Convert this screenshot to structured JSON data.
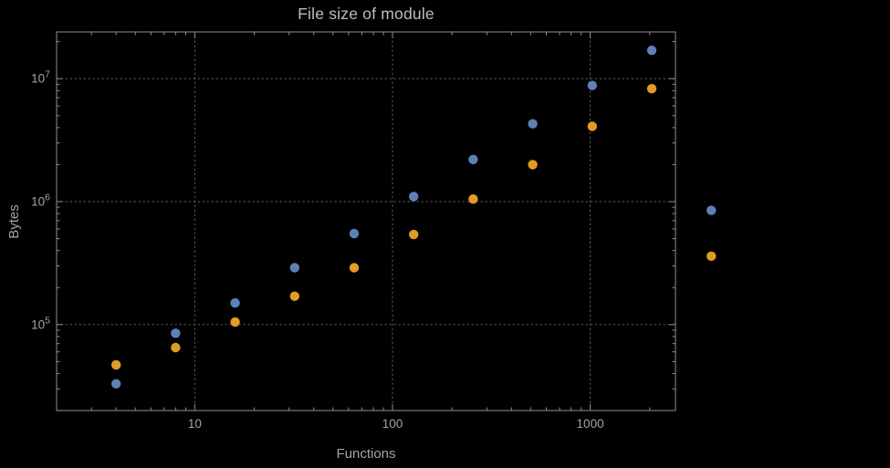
{
  "colors": {
    "background": "#000000",
    "title": "#bdbdbd",
    "text": "#a3a3a3",
    "frame": "#8f8f8f",
    "grid": "#5f5f5f"
  },
  "chart_data": {
    "type": "scatter",
    "title": "File size of module",
    "xlabel": "Functions",
    "ylabel": "Bytes",
    "x_scale": "log",
    "y_scale": "log",
    "xlim": [
      2,
      2700
    ],
    "ylim": [
      20000,
      24000000
    ],
    "grid": "dotted",
    "legend": "none",
    "x_ticks": [
      {
        "value": 10,
        "label": "10"
      },
      {
        "value": 100,
        "label": "100"
      },
      {
        "value": 1000,
        "label": "1000"
      }
    ],
    "y_ticks": [
      {
        "value": 100000,
        "base": "10",
        "exp": "5"
      },
      {
        "value": 1000000,
        "base": "10",
        "exp": "6"
      },
      {
        "value": 10000000,
        "base": "10",
        "exp": "7"
      }
    ],
    "x": [
      4,
      8,
      16,
      32,
      64,
      128,
      256,
      512,
      1024,
      2048,
      4096
    ],
    "series": [
      {
        "name": "blue",
        "color": "#5e81b5",
        "values": [
          33000,
          85000,
          150000,
          290000,
          550000,
          1100000,
          2200000,
          4300000,
          8800000,
          17000000,
          850000
        ]
      },
      {
        "name": "orange",
        "color": "#e19c24",
        "values": [
          47000,
          65000,
          105000,
          170000,
          290000,
          540000,
          1050000,
          2000000,
          4100000,
          8300000,
          360000
        ]
      }
    ]
  }
}
